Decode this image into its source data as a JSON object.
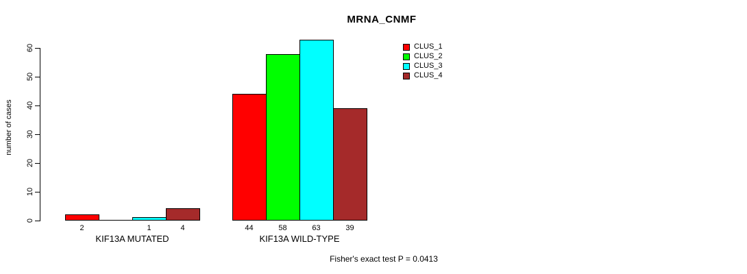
{
  "title": "MRNA_CNMF",
  "footer_annotation": "Fisher's exact test P = 0.0413",
  "chart_data": {
    "type": "bar",
    "title": "MRNA_CNMF",
    "xlabel": "",
    "ylabel": "number of cases",
    "ylim": [
      0,
      63
    ],
    "yticks": [
      0,
      10,
      20,
      30,
      40,
      50,
      60
    ],
    "grid": false,
    "legend_position": "top-right",
    "series": [
      {
        "name": "CLUS_1",
        "color": "#ff0000"
      },
      {
        "name": "CLUS_2",
        "color": "#00ff00"
      },
      {
        "name": "CLUS_3",
        "color": "#00ffff"
      },
      {
        "name": "CLUS_4",
        "color": "#a52a2a"
      }
    ],
    "groups": [
      {
        "label": "KIF13A MUTATED",
        "bars": [
          {
            "series": "CLUS_1",
            "value": 2,
            "label": "2"
          },
          {
            "series": "CLUS_2",
            "value": 0,
            "label": ""
          },
          {
            "series": "CLUS_3",
            "value": 1,
            "label": "1"
          },
          {
            "series": "CLUS_4",
            "value": 4,
            "label": "4"
          }
        ]
      },
      {
        "label": "KIF13A WILD-TYPE",
        "bars": [
          {
            "series": "CLUS_1",
            "value": 44,
            "label": "44"
          },
          {
            "series": "CLUS_2",
            "value": 58,
            "label": "58"
          },
          {
            "series": "CLUS_3",
            "value": 63,
            "label": "63"
          },
          {
            "series": "CLUS_4",
            "value": 39,
            "label": "39"
          }
        ]
      }
    ],
    "annotation": "Fisher's exact test P = 0.0413"
  }
}
